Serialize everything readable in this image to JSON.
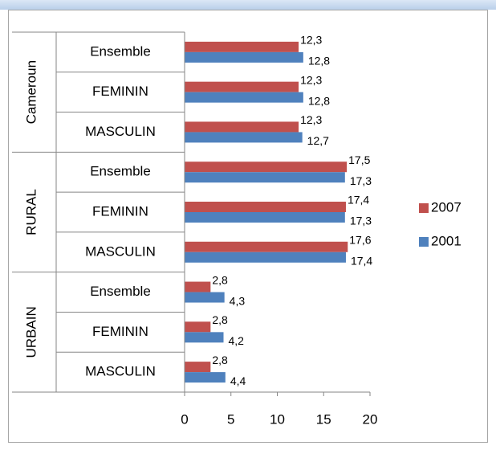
{
  "chart_data": {
    "type": "bar",
    "orientation": "horizontal",
    "groups": [
      {
        "name": "Cameroun",
        "categories": [
          "Ensemble",
          "FEMININ",
          "MASCULIN"
        ]
      },
      {
        "name": "RURAL",
        "categories": [
          "Ensemble",
          "FEMININ",
          "MASCULIN"
        ]
      },
      {
        "name": "URBAIN",
        "categories": [
          "Ensemble",
          "FEMININ",
          "MASCULIN"
        ]
      }
    ],
    "series": [
      {
        "name": "2007",
        "color": "#c0504d",
        "values": [
          12.3,
          12.3,
          12.3,
          17.5,
          17.4,
          17.6,
          2.8,
          2.8,
          2.8
        ],
        "value_labels": [
          "12,3",
          "12,3",
          "12,3",
          "17,5",
          "17,4",
          "17,6",
          "2,8",
          "2,8",
          "2,8"
        ]
      },
      {
        "name": "2001",
        "color": "#4f81bd",
        "values": [
          12.8,
          12.8,
          12.7,
          17.3,
          17.3,
          17.4,
          4.3,
          4.2,
          4.4
        ],
        "value_labels": [
          "12,8",
          "12,8",
          "12,7",
          "17,3",
          "17,3",
          "17,4",
          "4,3",
          "4,2",
          "4,4"
        ]
      }
    ],
    "xlim": [
      0,
      20
    ],
    "xticks": [
      0,
      5,
      10,
      15,
      20
    ],
    "legend": "right"
  }
}
